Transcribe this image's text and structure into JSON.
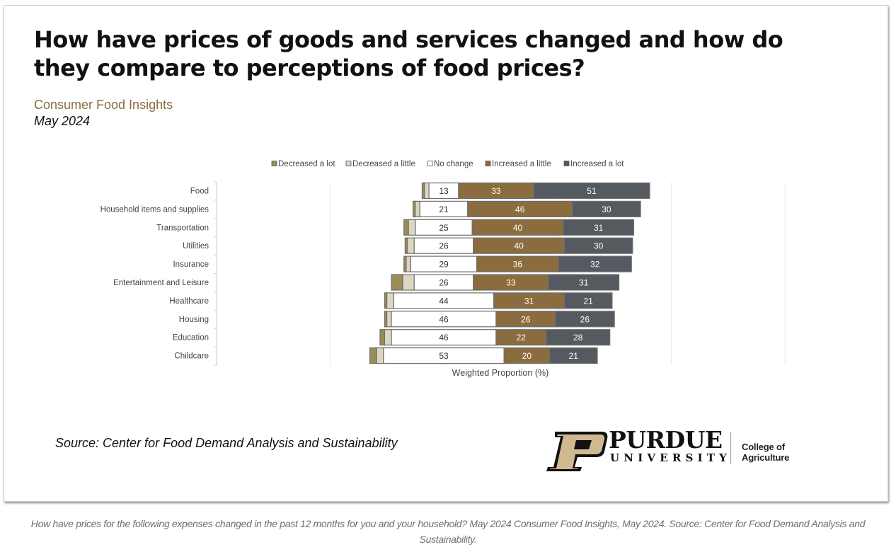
{
  "header": {
    "title": "How have prices of goods and services changed and how do they compare to perceptions of food prices?",
    "subtitle": "Consumer Food Insights",
    "date": "May 2024"
  },
  "footer": {
    "source": "Source:  Center for Food Demand Analysis and Sustainability",
    "logo_main": "PURDUE",
    "logo_sub": "UNIVERSITY",
    "logo_college": "College of Agriculture",
    "caption": "How have prices for the following expenses changed in the past 12 months for you and your household? May 2024 Consumer Food Insights, May 2024. Source: Center for Food Demand Analysis and Sustainability."
  },
  "colors": {
    "decreased_a_lot": "#9a8c57",
    "decreased_a_little": "#ddd6c1",
    "no_change": "#ffffff",
    "increased_a_little": "#8b6c3e",
    "increased_a_lot": "#555960",
    "brand_gold": "#8b6c3e",
    "logo_gold": "#cfb991"
  },
  "chart_data": {
    "type": "bar",
    "orientation": "horizontal-diverging-stacked",
    "title": "How have prices of goods and services changed and how do they compare to perceptions of food prices?",
    "xlabel": "Weighted Proportion (%)",
    "ylabel": "",
    "legend_position": "top",
    "grid": true,
    "xlim": [
      -50,
      150
    ],
    "xgrid": [
      -50,
      0,
      50,
      100,
      150
    ],
    "categories": [
      "Food",
      "Household items and supplies",
      "Transportation",
      "Utilities",
      "Insurance",
      "Entertainment and Leisure",
      "Healthcare",
      "Housing",
      "Education",
      "Childcare"
    ],
    "series": [
      {
        "name": "Decreased a lot",
        "key": "decreased_a_lot",
        "values": [
          1,
          1,
          2,
          1,
          1,
          5,
          1,
          1,
          2,
          3
        ],
        "labeled": false
      },
      {
        "name": "Decreased a little",
        "key": "decreased_a_little",
        "values": [
          2,
          2,
          3,
          3,
          2,
          5,
          3,
          2,
          3,
          3
        ],
        "labeled": false
      },
      {
        "name": "No change",
        "key": "no_change",
        "values": [
          13,
          21,
          25,
          26,
          29,
          26,
          44,
          46,
          46,
          53
        ],
        "labeled": true
      },
      {
        "name": "Increased a little",
        "key": "increased_a_little",
        "values": [
          33,
          46,
          40,
          40,
          36,
          33,
          31,
          26,
          22,
          20
        ],
        "labeled": true
      },
      {
        "name": "Increased a lot",
        "key": "increased_a_lot",
        "values": [
          51,
          30,
          31,
          30,
          32,
          31,
          21,
          26,
          28,
          21
        ],
        "labeled": true
      }
    ]
  }
}
